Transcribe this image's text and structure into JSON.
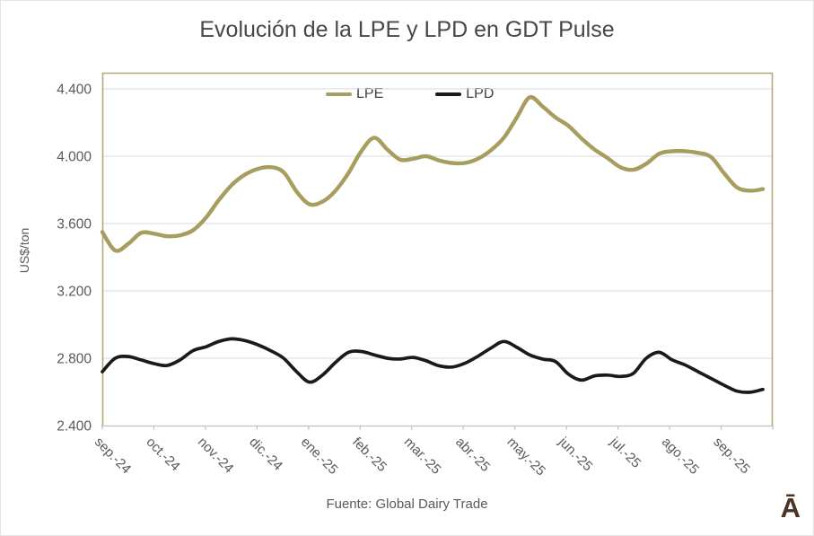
{
  "title": "Evolución de la LPE y LPD en GDT Pulse",
  "source": "Fuente: Global Dairy Trade",
  "logo": "Ā",
  "colors": {
    "lpe_line": "#A69D5F",
    "lpd_line": "#1A1A1A",
    "plot_border": "#B3A97A",
    "gridline": "#D9D9D9",
    "axis_line": "#BFBFBF",
    "title_text": "#474747",
    "tick_text": "#595959",
    "logo_brown": "#4B3425"
  },
  "chart_data": {
    "type": "line",
    "title": "Evolución de la LPE y LPD en GDT Pulse",
    "xlabel": "",
    "ylabel": "US$/ton",
    "ylim": [
      2400,
      4400
    ],
    "y_ticks": [
      2400,
      2800,
      3200,
      3600,
      4000,
      4400
    ],
    "y_tick_labels": [
      "2.400",
      "2.800",
      "3.200",
      "3.600",
      "4.000",
      "4.400"
    ],
    "x_tick_labels": [
      "sep.-24",
      "oct.-24",
      "nov.-24",
      "dic.-24",
      "ene.-25",
      "feb.-25",
      "mar.-25",
      "abr.-25",
      "may.-25",
      "jun.-25",
      "jul.-25",
      "ago.-25",
      "sep.-25"
    ],
    "grid": "horizontal",
    "legend_position": "top-center",
    "series": [
      {
        "name": "LPE",
        "color": "#A69D5F",
        "values": [
          3550,
          3440,
          3480,
          3545,
          3540,
          3525,
          3530,
          3560,
          3635,
          3740,
          3830,
          3890,
          3925,
          3935,
          3905,
          3790,
          3715,
          3730,
          3795,
          3900,
          4030,
          4110,
          4040,
          3980,
          3985,
          4000,
          3975,
          3960,
          3960,
          3985,
          4035,
          4110,
          4230,
          4350,
          4295,
          4230,
          4180,
          4105,
          4040,
          3990,
          3935,
          3920,
          3955,
          4015,
          4030,
          4030,
          4020,
          3995,
          3900,
          3815,
          3795,
          3805
        ]
      },
      {
        "name": "LPD",
        "color": "#1A1A1A",
        "values": [
          2720,
          2800,
          2810,
          2790,
          2768,
          2757,
          2790,
          2845,
          2868,
          2900,
          2915,
          2905,
          2880,
          2845,
          2800,
          2720,
          2658,
          2700,
          2775,
          2835,
          2840,
          2820,
          2800,
          2795,
          2805,
          2785,
          2755,
          2748,
          2770,
          2812,
          2860,
          2900,
          2865,
          2820,
          2795,
          2780,
          2705,
          2670,
          2695,
          2700,
          2692,
          2710,
          2800,
          2835,
          2790,
          2760,
          2720,
          2680,
          2640,
          2605,
          2598,
          2615
        ]
      }
    ]
  }
}
